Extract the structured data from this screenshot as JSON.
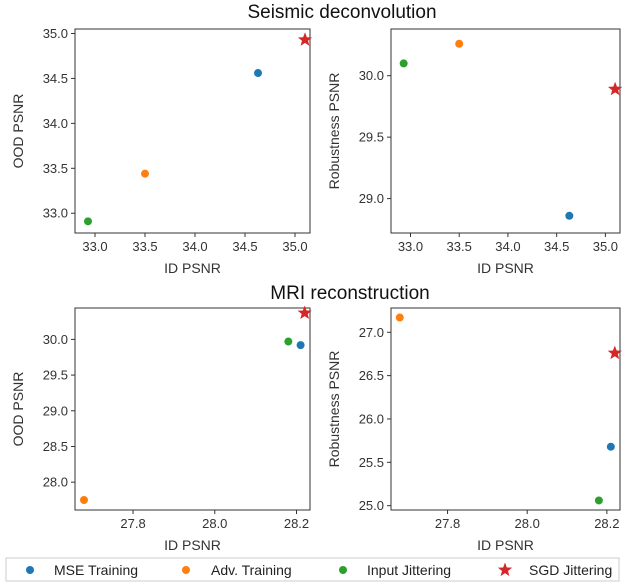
{
  "row_titles": [
    "Seismic deconvolution",
    "MRI reconstruction"
  ],
  "legend": [
    {
      "label": "MSE Training",
      "color": "#1f77b4",
      "marker": "circle"
    },
    {
      "label": "Adv. Training",
      "color": "#ff7f0e",
      "marker": "circle"
    },
    {
      "label": "Input Jittering",
      "color": "#2ca02c",
      "marker": "circle"
    },
    {
      "label": "SGD Jittering",
      "color": "#d62728",
      "marker": "star"
    }
  ],
  "chart_data": [
    {
      "type": "scatter",
      "group": "Seismic deconvolution",
      "xlabel": "ID PSNR",
      "ylabel": "OOD PSNR",
      "xlim": [
        32.8,
        35.15
      ],
      "ylim": [
        32.78,
        35.05
      ],
      "xticks": [
        "33.0",
        "33.5",
        "34.0",
        "34.5",
        "35.0"
      ],
      "yticks": [
        "33.0",
        "33.5",
        "34.0",
        "34.5",
        "35.0"
      ],
      "points": [
        {
          "series": "MSE Training",
          "x": 34.63,
          "y": 34.56
        },
        {
          "series": "Adv. Training",
          "x": 33.5,
          "y": 33.44
        },
        {
          "series": "Input Jittering",
          "x": 32.93,
          "y": 32.91
        },
        {
          "series": "SGD Jittering",
          "x": 35.1,
          "y": 34.93
        }
      ]
    },
    {
      "type": "scatter",
      "group": "Seismic deconvolution",
      "xlabel": "ID PSNR",
      "ylabel": "Robustness PSNR",
      "xlim": [
        32.8,
        35.15
      ],
      "ylim": [
        28.72,
        30.38
      ],
      "xticks": [
        "33.0",
        "33.5",
        "34.0",
        "34.5",
        "35.0"
      ],
      "yticks": [
        "29.0",
        "29.5",
        "30.0"
      ],
      "points": [
        {
          "series": "MSE Training",
          "x": 34.63,
          "y": 28.86
        },
        {
          "series": "Adv. Training",
          "x": 33.5,
          "y": 30.26
        },
        {
          "series": "Input Jittering",
          "x": 32.93,
          "y": 30.1
        },
        {
          "series": "SGD Jittering",
          "x": 35.1,
          "y": 29.89
        }
      ]
    },
    {
      "type": "scatter",
      "group": "MRI reconstruction",
      "xlabel": "ID PSNR",
      "ylabel": "OOD PSNR",
      "xlim": [
        27.658,
        28.233
      ],
      "ylim": [
        27.61,
        30.44
      ],
      "xticks": [
        "27.8",
        "28.0",
        "28.2"
      ],
      "yticks": [
        "28.0",
        "28.5",
        "29.0",
        "29.5",
        "30.0"
      ],
      "points": [
        {
          "series": "MSE Training",
          "x": 28.21,
          "y": 29.92
        },
        {
          "series": "Adv. Training",
          "x": 27.68,
          "y": 27.75
        },
        {
          "series": "Input Jittering",
          "x": 28.18,
          "y": 29.97
        },
        {
          "series": "SGD Jittering",
          "x": 28.22,
          "y": 30.37
        }
      ]
    },
    {
      "type": "scatter",
      "group": "MRI reconstruction",
      "xlabel": "ID PSNR",
      "ylabel": "Robustness PSNR",
      "xlim": [
        27.658,
        28.233
      ],
      "ylim": [
        24.95,
        27.28
      ],
      "xticks": [
        "27.8",
        "28.0",
        "28.2"
      ],
      "yticks": [
        "25.0",
        "25.5",
        "26.0",
        "26.5",
        "27.0"
      ],
      "points": [
        {
          "series": "MSE Training",
          "x": 28.21,
          "y": 25.68
        },
        {
          "series": "Adv. Training",
          "x": 27.68,
          "y": 27.17
        },
        {
          "series": "Input Jittering",
          "x": 28.18,
          "y": 25.06
        },
        {
          "series": "SGD Jittering",
          "x": 28.22,
          "y": 26.76
        }
      ]
    }
  ]
}
